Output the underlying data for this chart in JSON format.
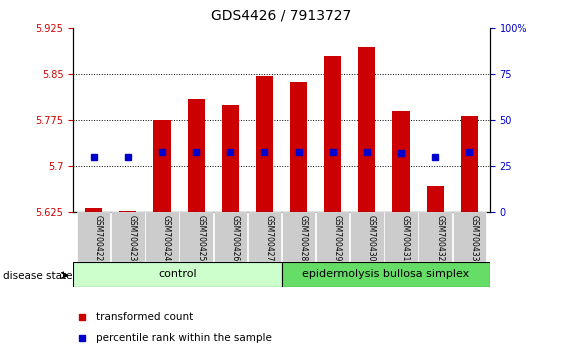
{
  "title": "GDS4426 / 7913727",
  "samples": [
    "GSM700422",
    "GSM700423",
    "GSM700424",
    "GSM700425",
    "GSM700426",
    "GSM700427",
    "GSM700428",
    "GSM700429",
    "GSM700430",
    "GSM700431",
    "GSM700432",
    "GSM700433"
  ],
  "transformed_count": [
    5.632,
    5.628,
    5.775,
    5.81,
    5.8,
    5.848,
    5.838,
    5.88,
    5.895,
    5.79,
    5.668,
    5.782
  ],
  "percentile_rank": [
    30,
    30,
    33,
    33,
    33,
    33,
    33,
    33,
    33,
    32,
    30,
    33
  ],
  "ymin": 5.625,
  "ymax": 5.925,
  "y_ticks_left": [
    5.625,
    5.7,
    5.775,
    5.85,
    5.925
  ],
  "y_ticks_right": [
    0,
    25,
    50,
    75,
    100
  ],
  "bar_color": "#cc0000",
  "dot_color": "#0000cc",
  "control_samples": 6,
  "disease_samples": 6,
  "control_label": "control",
  "disease_label": "epidermolysis bullosa simplex",
  "group_label": "disease state",
  "legend_bar": "transformed count",
  "legend_dot": "percentile rank within the sample",
  "control_bg": "#ccffcc",
  "disease_bg": "#66dd66",
  "tick_bg": "#cccccc",
  "fig_width": 5.63,
  "fig_height": 3.54,
  "grid_lines": [
    5.7,
    5.775,
    5.85
  ]
}
